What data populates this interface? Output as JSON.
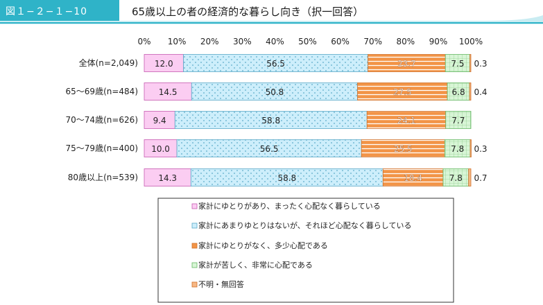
{
  "figure": {
    "label": "図１−２−１−10",
    "title": "65歳以上の者の経済的な暮らし向き（択一回答）"
  },
  "chart_data": {
    "type": "bar",
    "orientation": "horizontal",
    "stacked": true,
    "percent": true,
    "x_ticks": [
      "0%",
      "10%",
      "20%",
      "30%",
      "40%",
      "50%",
      "60%",
      "70%",
      "80%",
      "90%",
      "100%"
    ],
    "xlim": [
      0,
      100
    ],
    "categories": [
      "全体(n=2,049)",
      "65～69歳(n=484)",
      "70～74歳(n=626)",
      "75～79歳(n=400)",
      "80歳以上(n=539)"
    ],
    "series": [
      {
        "name": "家計にゆとりがあり、まったく心配なく暮らしている",
        "color": "#fbcdf2",
        "values": [
          12.0,
          14.5,
          9.4,
          10.0,
          14.3
        ],
        "labels": [
          "12.0",
          "14.5",
          "9.4",
          "10.0",
          "14.3"
        ]
      },
      {
        "name": "家計にあまりゆとりはないが、それほど心配なく暮らしている",
        "color": "#cdeefb",
        "values": [
          56.5,
          50.8,
          58.8,
          56.5,
          58.8
        ],
        "labels": [
          "56.5",
          "50.8",
          "58.8",
          "56.5",
          "58.8"
        ]
      },
      {
        "name": "家計にゆとりがなく、多少心配である",
        "color": "#f29447",
        "values": [
          23.7,
          27.5,
          24.1,
          25.5,
          18.4
        ],
        "labels": [
          "23.7",
          "27.5",
          "24.1",
          "25.5",
          "18.4"
        ]
      },
      {
        "name": "家計が苦しく、非常に心配である",
        "color": "#d8f5d6",
        "values": [
          7.5,
          6.8,
          7.7,
          7.8,
          7.8
        ],
        "labels": [
          "7.5",
          "6.8",
          "7.7",
          "7.8",
          "7.8"
        ]
      },
      {
        "name": "不明・無回答",
        "color": "#f6b784",
        "values": [
          0.3,
          0.4,
          0.0,
          0.3,
          0.7
        ],
        "labels": [
          "0.3",
          "0.4",
          "",
          "0.3",
          "0.7"
        ]
      }
    ],
    "legend_position": "bottom",
    "grid": false
  }
}
